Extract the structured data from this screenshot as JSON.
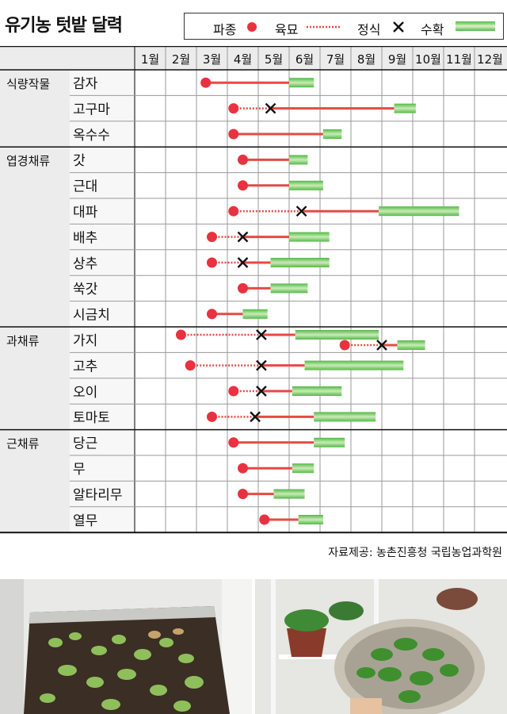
{
  "title": "유기농 텃밭 달력",
  "legend": {
    "sow": "파종",
    "seedling": "육묘",
    "transplant": "정식",
    "harvest": "수확"
  },
  "source": "자료제공: 농촌진흥청 국립농업과학원",
  "colors": {
    "sow": "#e8323f",
    "growth": "#e54a45",
    "harvest": "#54b847",
    "harvest_light": "#c8ecb6",
    "grid": "#9a9a9a",
    "header_bg": "#ececec"
  },
  "chart_data": {
    "type": "gantt",
    "x_ticks": [
      "1월",
      "2월",
      "3월",
      "4월",
      "5월",
      "6월",
      "7월",
      "8월",
      "9월",
      "10월",
      "11월",
      "12월"
    ],
    "xlim": [
      1,
      13
    ],
    "groups": [
      {
        "name": "식량작물",
        "crops": [
          {
            "name": "감자",
            "rows": [
              {
                "sow": 3.3,
                "harvest": [
                  6.0,
                  6.8
                ]
              }
            ]
          },
          {
            "name": "고구마",
            "rows": [
              {
                "sow": 4.2,
                "transplant": 5.4,
                "harvest": [
                  9.4,
                  10.1
                ]
              }
            ]
          },
          {
            "name": "옥수수",
            "rows": [
              {
                "sow": 4.2,
                "harvest": [
                  7.1,
                  7.7
                ]
              }
            ]
          }
        ]
      },
      {
        "name": "엽경채류",
        "crops": [
          {
            "name": "갓",
            "rows": [
              {
                "sow": 4.5,
                "harvest": [
                  6.0,
                  6.6
                ]
              }
            ]
          },
          {
            "name": "근대",
            "rows": [
              {
                "sow": 4.5,
                "harvest": [
                  6.0,
                  7.1
                ]
              }
            ]
          },
          {
            "name": "대파",
            "rows": [
              {
                "sow": 4.2,
                "transplant": 6.4,
                "harvest": [
                  8.9,
                  11.5
                ]
              }
            ]
          },
          {
            "name": "배추",
            "rows": [
              {
                "sow": 3.5,
                "transplant": 4.5,
                "harvest": [
                  6.0,
                  7.3
                ]
              }
            ]
          },
          {
            "name": "상추",
            "rows": [
              {
                "sow": 3.5,
                "transplant": 4.5,
                "harvest": [
                  5.4,
                  7.3
                ]
              }
            ]
          },
          {
            "name": "쑥갓",
            "rows": [
              {
                "sow": 4.5,
                "harvest": [
                  5.4,
                  6.6
                ]
              }
            ]
          },
          {
            "name": "시금치",
            "rows": [
              {
                "sow": 3.5,
                "harvest": [
                  4.5,
                  5.3
                ]
              }
            ]
          }
        ]
      },
      {
        "name": "과채류",
        "crops": [
          {
            "name": "가지",
            "rows": [
              {
                "sow": 2.5,
                "transplant": 5.1,
                "harvest": [
                  6.2,
                  8.9
                ]
              },
              {
                "sow": 7.8,
                "transplant": 9.0,
                "harvest": [
                  9.5,
                  10.4
                ]
              }
            ]
          },
          {
            "name": "고추",
            "rows": [
              {
                "sow": 2.8,
                "transplant": 5.1,
                "harvest": [
                  6.5,
                  9.7
                ]
              }
            ]
          },
          {
            "name": "오이",
            "rows": [
              {
                "sow": 4.2,
                "transplant": 5.1,
                "harvest": [
                  6.1,
                  7.7
                ]
              }
            ]
          },
          {
            "name": "토마토",
            "rows": [
              {
                "sow": 3.5,
                "transplant": 4.9,
                "harvest": [
                  6.8,
                  8.8
                ]
              }
            ]
          }
        ]
      },
      {
        "name": "근채류",
        "crops": [
          {
            "name": "당근",
            "rows": [
              {
                "sow": 4.2,
                "harvest": [
                  6.8,
                  7.8
                ]
              }
            ]
          },
          {
            "name": "무",
            "rows": [
              {
                "sow": 4.5,
                "harvest": [
                  6.1,
                  6.8
                ]
              }
            ]
          },
          {
            "name": "알타리무",
            "rows": [
              {
                "sow": 4.5,
                "harvest": [
                  5.5,
                  6.5
                ]
              }
            ]
          },
          {
            "name": "열무",
            "rows": [
              {
                "sow": 5.2,
                "harvest": [
                  6.3,
                  7.1
                ]
              }
            ]
          }
        ]
      }
    ]
  }
}
